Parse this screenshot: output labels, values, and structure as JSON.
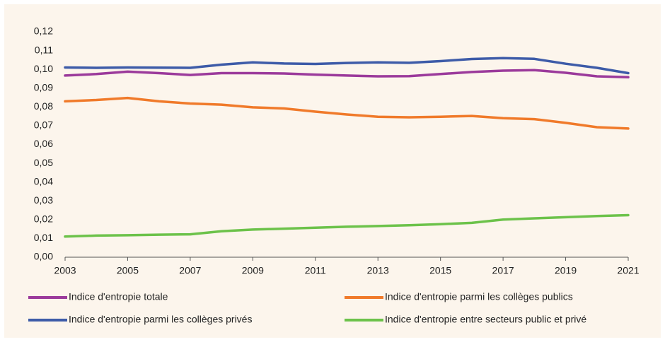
{
  "chart_data": {
    "type": "line",
    "x": [
      2003,
      2004,
      2005,
      2006,
      2007,
      2008,
      2009,
      2010,
      2011,
      2012,
      2013,
      2014,
      2015,
      2016,
      2017,
      2018,
      2019,
      2020,
      2021
    ],
    "xlim": [
      2003,
      2021
    ],
    "xticks": [
      2003,
      2005,
      2007,
      2009,
      2011,
      2013,
      2015,
      2017,
      2019,
      2021
    ],
    "ylim": [
      0,
      0.12
    ],
    "yticks": [
      {
        "value": 0,
        "label": "0,00"
      },
      {
        "value": 0.01,
        "label": "0,01"
      },
      {
        "value": 0.02,
        "label": "0,02"
      },
      {
        "value": 0.03,
        "label": "0,03"
      },
      {
        "value": 0.04,
        "label": "0,04"
      },
      {
        "value": 0.05,
        "label": "0,05"
      },
      {
        "value": 0.06,
        "label": "0,06"
      },
      {
        "value": 0.07,
        "label": "0,07"
      },
      {
        "value": 0.08,
        "label": "0,08"
      },
      {
        "value": 0.09,
        "label": "0,09"
      },
      {
        "value": 0.1,
        "label": "0,10"
      },
      {
        "value": 0.11,
        "label": "0,11"
      },
      {
        "value": 0.12,
        "label": "0,12"
      }
    ],
    "grid": false,
    "series": [
      {
        "name": "Indice d'entropie totale",
        "color": "#9b3a9b",
        "values": [
          0.0967,
          0.0975,
          0.0988,
          0.098,
          0.097,
          0.098,
          0.098,
          0.0978,
          0.0972,
          0.0967,
          0.0963,
          0.0964,
          0.0975,
          0.0986,
          0.0993,
          0.0996,
          0.0982,
          0.0963,
          0.0958
        ]
      },
      {
        "name": "Indice d'entropie parmi les collèges publics",
        "color": "#f07a2a",
        "values": [
          0.083,
          0.0837,
          0.0848,
          0.083,
          0.0818,
          0.0812,
          0.0798,
          0.0792,
          0.0775,
          0.076,
          0.0748,
          0.0745,
          0.0748,
          0.0752,
          0.074,
          0.0735,
          0.0715,
          0.0692,
          0.0685
        ]
      },
      {
        "name": "Indice d'entropie parmi les collèges privés",
        "color": "#3d5ba8",
        "values": [
          0.101,
          0.1008,
          0.101,
          0.1009,
          0.1008,
          0.1025,
          0.1037,
          0.1031,
          0.1029,
          0.1034,
          0.1037,
          0.1035,
          0.1044,
          0.1055,
          0.106,
          0.1056,
          0.103,
          0.1008,
          0.098
        ]
      },
      {
        "name": "Indice d'entropie entre secteurs public et privé",
        "color": "#6cc24a",
        "values": [
          0.011,
          0.0115,
          0.0117,
          0.012,
          0.0122,
          0.0138,
          0.0147,
          0.0152,
          0.0157,
          0.0162,
          0.0166,
          0.017,
          0.0176,
          0.0183,
          0.02,
          0.0207,
          0.0213,
          0.0219,
          0.0224
        ]
      }
    ]
  }
}
